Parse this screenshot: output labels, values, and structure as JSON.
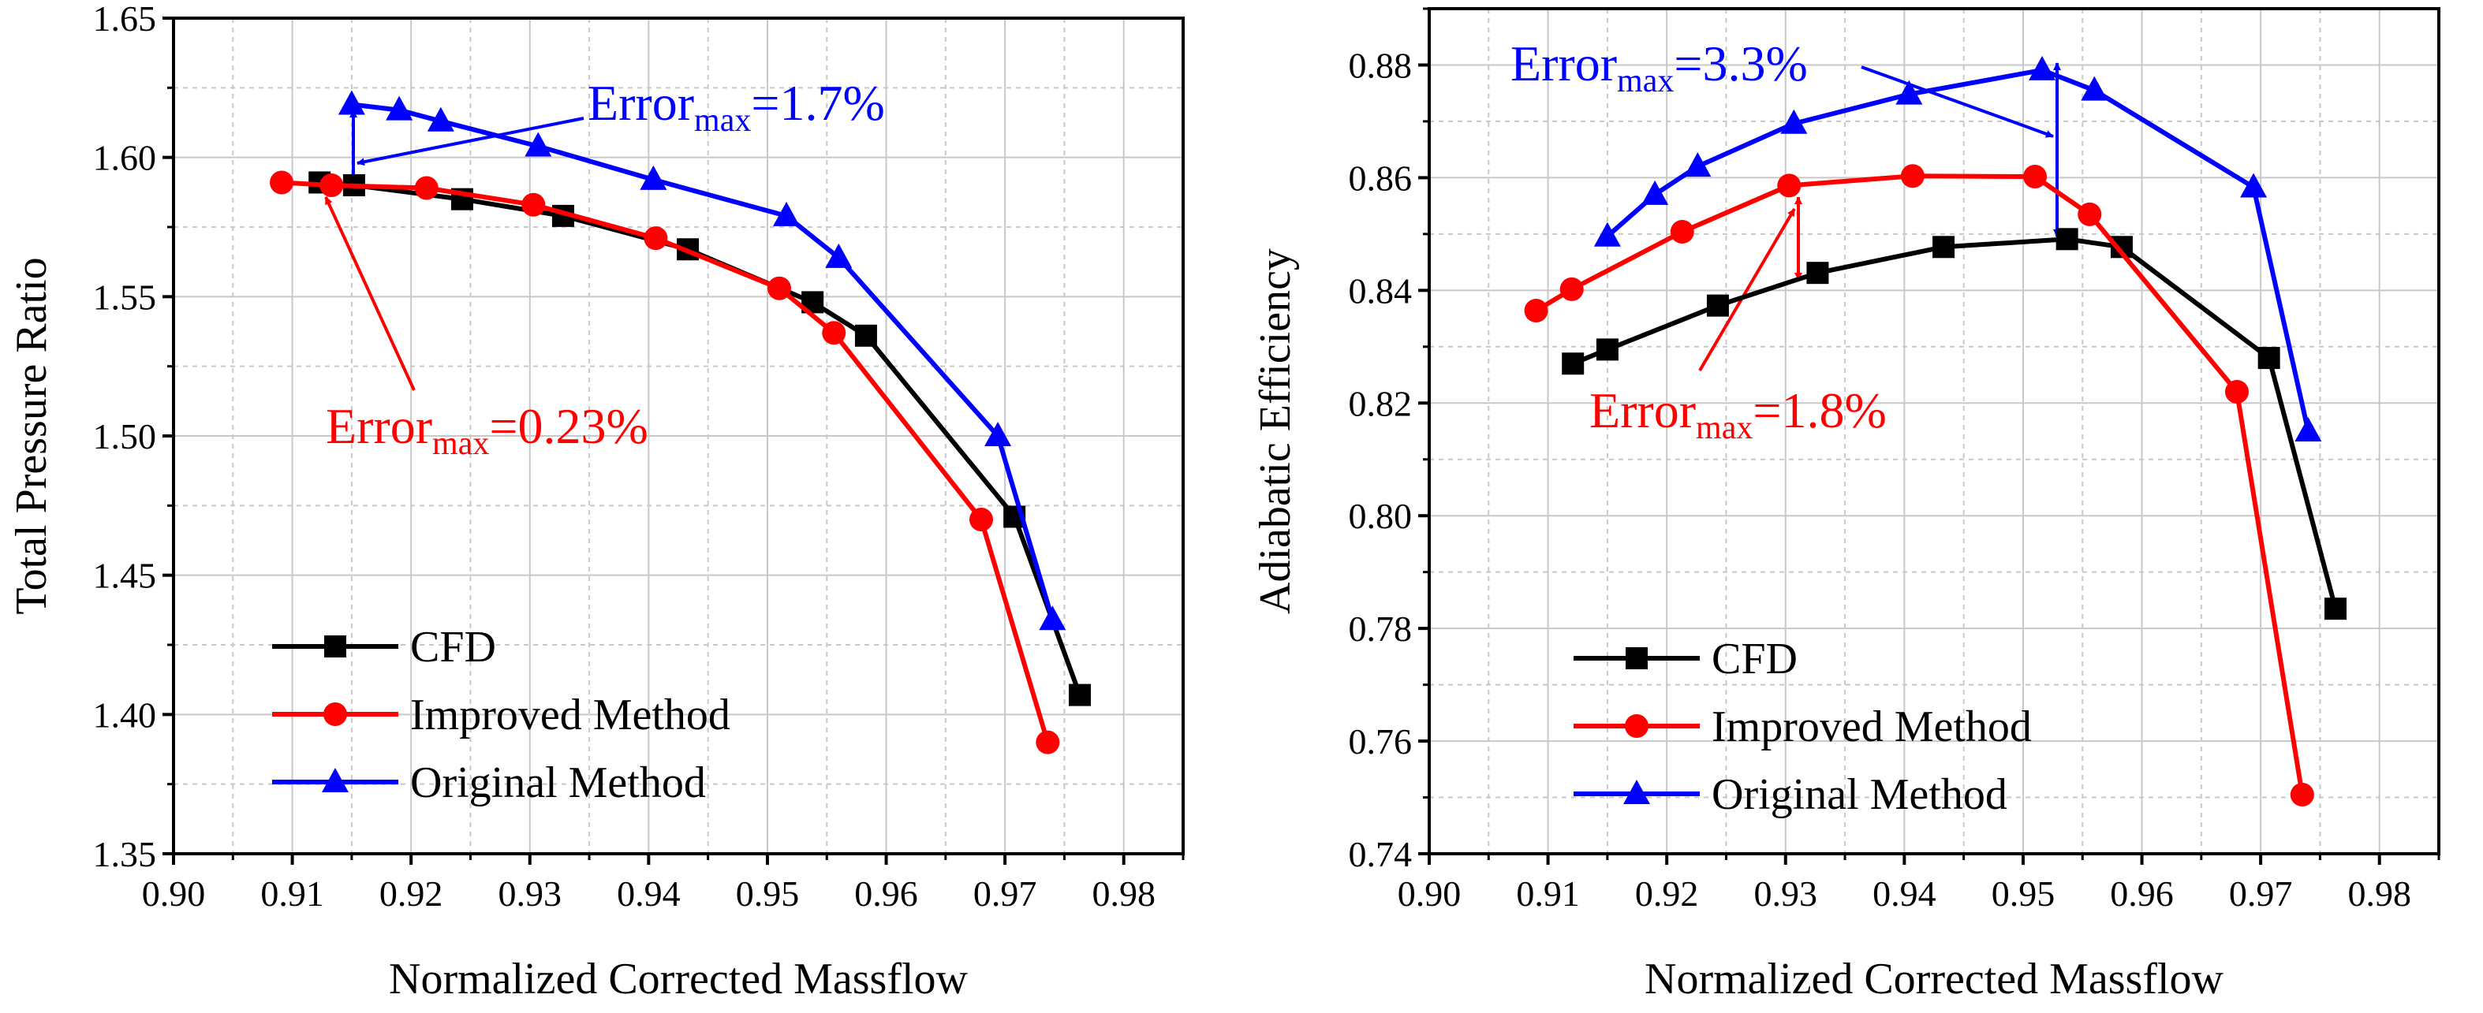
{
  "colors": {
    "cfd": "#000000",
    "improved": "#ff0000",
    "original": "#0000ff",
    "grid": "#c8c8c8"
  },
  "chart_data": [
    {
      "type": "line",
      "xlabel": "Normalized Corrected Massflow",
      "ylabel": "Total Pressure Ratio",
      "xlim": [
        0.9,
        0.985
      ],
      "ylim": [
        1.35,
        1.65
      ],
      "xticks": [
        "0.90",
        "0.91",
        "0.92",
        "0.93",
        "0.94",
        "0.95",
        "0.96",
        "0.97",
        "0.98"
      ],
      "yticks": [
        "1.35",
        "1.40",
        "1.45",
        "1.50",
        "1.55",
        "1.60",
        "1.65"
      ],
      "grid": true,
      "legend_position": "bottom-left",
      "series": [
        {
          "name": "CFD",
          "key": "cfd",
          "marker": "square",
          "x": [
            0.9123,
            0.9152,
            0.9243,
            0.9328,
            0.9433,
            0.9538,
            0.9583,
            0.9708,
            0.9763
          ],
          "y": [
            1.591,
            1.59,
            1.585,
            1.579,
            1.567,
            1.548,
            1.536,
            1.471,
            1.407
          ]
        },
        {
          "name": "Improved Method",
          "key": "improved",
          "marker": "circle",
          "x": [
            0.9091,
            0.9133,
            0.9213,
            0.9303,
            0.9406,
            0.951,
            0.9556,
            0.968,
            0.9736
          ],
          "y": [
            1.591,
            1.59,
            1.589,
            1.583,
            1.571,
            1.553,
            1.537,
            1.47,
            1.39
          ]
        },
        {
          "name": "Original Method",
          "key": "original",
          "marker": "triangle",
          "x": [
            0.915,
            0.919,
            0.9225,
            0.9307,
            0.9404,
            0.9516,
            0.956,
            0.9694,
            0.974
          ],
          "y": [
            1.619,
            1.617,
            1.613,
            1.604,
            1.592,
            1.579,
            1.564,
            1.5,
            1.434
          ]
        }
      ],
      "annotations": [
        {
          "base": "Error",
          "sub": "max",
          "value": "=1.7%",
          "color": "blue"
        },
        {
          "base": "Error",
          "sub": "max",
          "value": "=0.23%",
          "color": "red"
        }
      ]
    },
    {
      "type": "line",
      "xlabel": "Normalized Corrected Massflow",
      "ylabel": "Adiabatic Efficiency",
      "xlim": [
        0.9,
        0.985
      ],
      "ylim": [
        0.74,
        0.89
      ],
      "xticks": [
        "0.90",
        "0.91",
        "0.92",
        "0.93",
        "0.94",
        "0.95",
        "0.96",
        "0.97",
        "0.98"
      ],
      "yticks": [
        "0.74",
        "0.76",
        "0.78",
        "0.80",
        "0.82",
        "0.84",
        "0.86",
        "0.88"
      ],
      "grid": true,
      "legend_position": "bottom-left",
      "series": [
        {
          "name": "CFD",
          "key": "cfd",
          "marker": "square",
          "x": [
            0.9121,
            0.915,
            0.9243,
            0.9327,
            0.9433,
            0.9537,
            0.9583,
            0.9707,
            0.9763
          ],
          "y": [
            0.827,
            0.8295,
            0.8373,
            0.8431,
            0.8477,
            0.8491,
            0.8477,
            0.828,
            0.7835
          ]
        },
        {
          "name": "Improved Method",
          "key": "improved",
          "marker": "circle",
          "x": [
            0.909,
            0.912,
            0.9213,
            0.9303,
            0.9407,
            0.951,
            0.9556,
            0.968,
            0.9735
          ],
          "y": [
            0.8364,
            0.8402,
            0.8504,
            0.8586,
            0.8603,
            0.8602,
            0.8535,
            0.822,
            0.7505
          ]
        },
        {
          "name": "Original Method",
          "key": "original",
          "marker": "triangle",
          "x": [
            0.915,
            0.919,
            0.9226,
            0.9307,
            0.9404,
            0.9516,
            0.956,
            0.9694,
            0.974
          ],
          "y": [
            0.8496,
            0.857,
            0.862,
            0.8696,
            0.8748,
            0.8791,
            0.8755,
            0.8583,
            0.815
          ]
        }
      ],
      "annotations": [
        {
          "base": "Error",
          "sub": "max",
          "value": "=3.3%",
          "color": "blue"
        },
        {
          "base": "Error",
          "sub": "max",
          "value": "=1.8%",
          "color": "red"
        }
      ]
    }
  ]
}
